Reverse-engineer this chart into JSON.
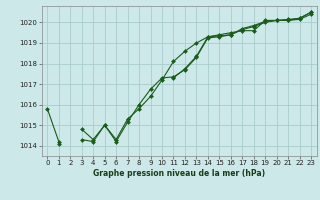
{
  "background_color": "#cce8e8",
  "grid_color": "#aacccc",
  "line_color": "#1a5c1a",
  "marker_color": "#1a5c1a",
  "xlabel": "Graphe pression niveau de la mer (hPa)",
  "ylim": [
    1013.5,
    1020.8
  ],
  "xlim": [
    -0.5,
    23.5
  ],
  "yticks": [
    1014,
    1015,
    1016,
    1017,
    1018,
    1019,
    1020
  ],
  "xticks": [
    0,
    1,
    2,
    3,
    4,
    5,
    6,
    7,
    8,
    9,
    10,
    11,
    12,
    13,
    14,
    15,
    16,
    17,
    18,
    19,
    20,
    21,
    22,
    23
  ],
  "series": [
    [
      1015.8,
      1014.2,
      null,
      1014.8,
      1014.3,
      1015.0,
      1014.3,
      1015.3,
      1015.8,
      1016.4,
      1017.2,
      1018.1,
      1018.6,
      1019.0,
      1019.3,
      1019.4,
      1019.5,
      1019.6,
      1019.6,
      1020.1,
      1020.1,
      1020.1,
      1020.2,
      1020.5
    ],
    [
      null,
      1014.1,
      null,
      1014.3,
      1014.2,
      1015.0,
      1014.2,
      1015.15,
      1016.0,
      1016.75,
      1017.3,
      1017.35,
      1017.7,
      1018.3,
      1019.25,
      1019.3,
      1019.4,
      1019.65,
      1019.8,
      1020.0,
      1020.1,
      1020.1,
      1020.15,
      1020.4
    ],
    [
      null,
      null,
      null,
      null,
      null,
      null,
      null,
      null,
      null,
      null,
      null,
      1017.3,
      1017.75,
      1018.35,
      1019.3,
      1019.35,
      1019.4,
      1019.7,
      1019.85,
      1020.05,
      1020.1,
      1020.15,
      1020.2,
      1020.5
    ]
  ]
}
